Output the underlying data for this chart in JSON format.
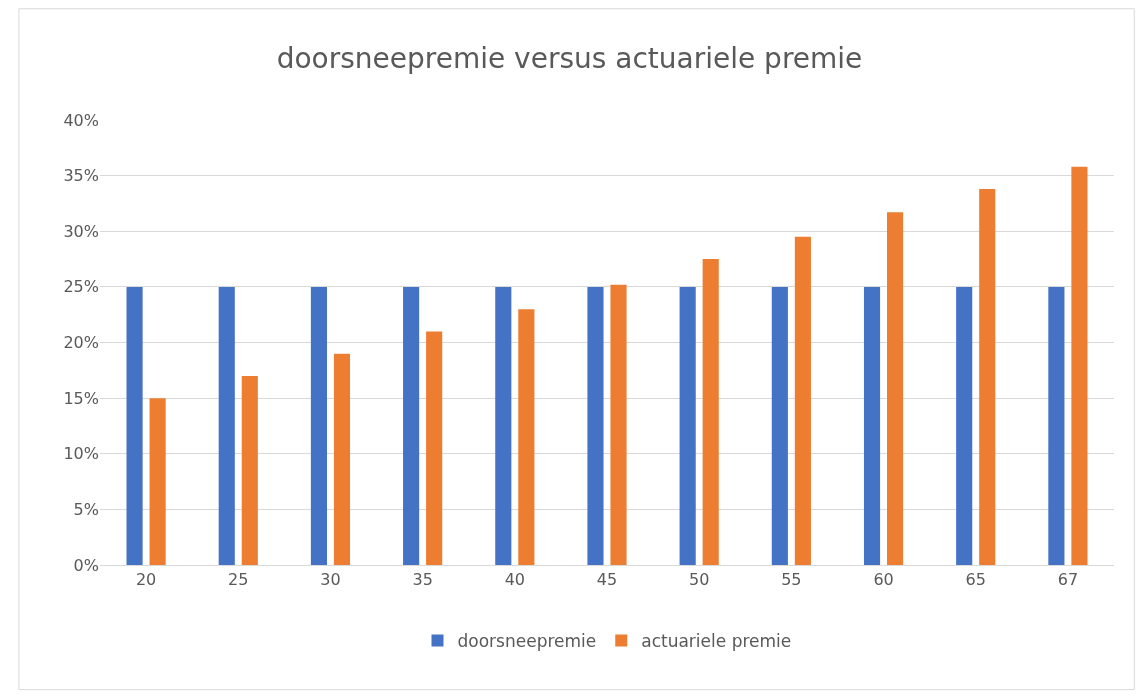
{
  "chart_data": {
    "type": "bar",
    "title": "doorsneepremie versus actuariele premie",
    "categories": [
      "20",
      "25",
      "30",
      "35",
      "40",
      "45",
      "50",
      "55",
      "60",
      "65",
      "67"
    ],
    "series": [
      {
        "name": "doorsneepremie",
        "color": "#4472c4",
        "values": [
          25,
          25,
          25,
          25,
          25,
          25,
          25,
          25,
          25,
          25,
          25
        ]
      },
      {
        "name": "actuariele premie",
        "color": "#ed7d31",
        "values": [
          15,
          17,
          19,
          21,
          23,
          25.2,
          27.5,
          29.5,
          31.7,
          33.8,
          35.8
        ]
      }
    ],
    "ylim": [
      0,
      40
    ],
    "yticks": [
      {
        "value": 0,
        "label": "0%"
      },
      {
        "value": 5,
        "label": "5%"
      },
      {
        "value": 10,
        "label": "10%"
      },
      {
        "value": 15,
        "label": "15%"
      },
      {
        "value": 20,
        "label": "20%"
      },
      {
        "value": 25,
        "label": "25%"
      },
      {
        "value": 30,
        "label": "30%"
      },
      {
        "value": 35,
        "label": "35%"
      },
      {
        "value": 40,
        "label": "40%"
      }
    ],
    "grid": "y",
    "legend": "bottom"
  }
}
